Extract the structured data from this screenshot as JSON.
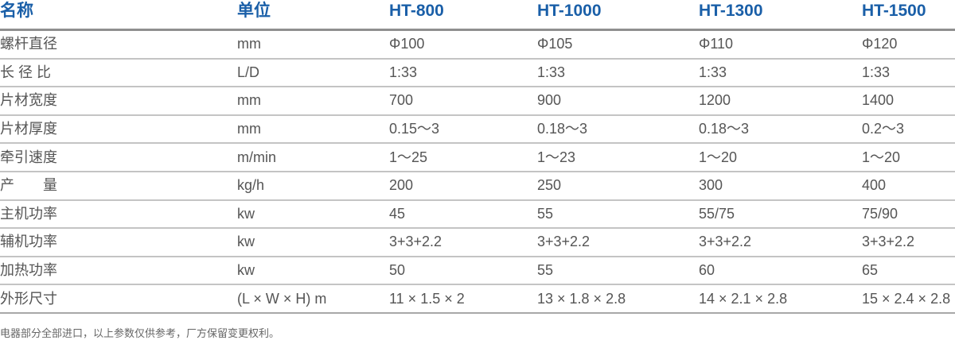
{
  "headers": [
    "名称",
    "单位",
    "HT-800",
    "HT-1000",
    "HT-1300",
    "HT-1500"
  ],
  "rows": [
    [
      "螺杆直径",
      "mm",
      "Φ100",
      "Φ105",
      "Φ110",
      "Φ120"
    ],
    [
      "长 径 比",
      "L/D",
      "1:33",
      "1:33",
      "1:33",
      "1:33"
    ],
    [
      "片材宽度",
      "mm",
      "700",
      "900",
      "1200",
      "1400"
    ],
    [
      "片材厚度",
      "mm",
      "0.15～3",
      "0.18～3",
      "0.18～3",
      "0.2～3"
    ],
    [
      "牵引速度",
      "m/min",
      "1～25",
      "1～23",
      "1～20",
      "1～20"
    ],
    [
      "产　　量",
      "kg/h",
      "200",
      "250",
      "300",
      "400"
    ],
    [
      "主机功率",
      "kw",
      "45",
      "55",
      "55/75",
      "75/90"
    ],
    [
      "辅机功率",
      "kw",
      "3+3+2.2",
      "3+3+2.2",
      "3+3+2.2",
      "3+3+2.2"
    ],
    [
      "加热功率",
      "kw",
      "50",
      "55",
      "60",
      "65"
    ],
    [
      "外形尺寸",
      "(L × W × H) m",
      "11 × 1.5 × 2",
      "13 × 1.8 × 2.8",
      "14 × 2.1 × 2.8",
      "15 × 2.4 × 2.8"
    ]
  ],
  "footer": "电器部分全部进口，以上参数仅供参考，厂方保留变更权利。",
  "colors": {
    "header": "#1a5fa8",
    "text": "#555555"
  }
}
